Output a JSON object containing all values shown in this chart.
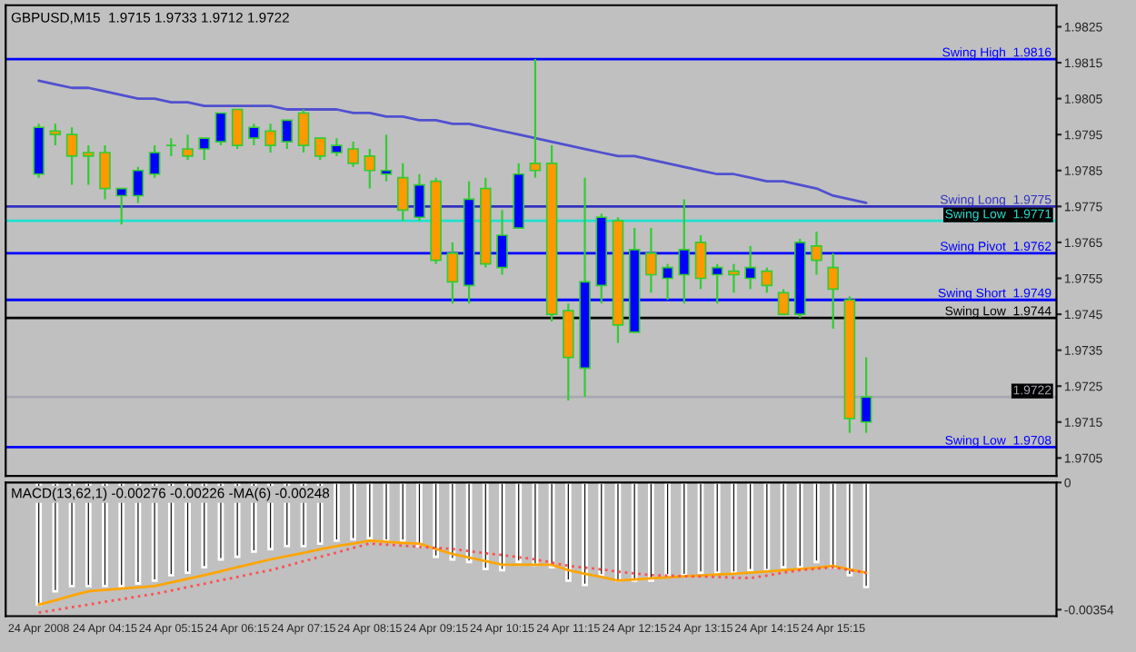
{
  "chart_data": [
    {
      "type": "candlestick",
      "title": "GBPUSD,M15  1.9715 1.9733 1.9712 1.9722",
      "categories": [
        null,
        null,
        null,
        null,
        null,
        null,
        null,
        null,
        null,
        null,
        null,
        null,
        null,
        null,
        null,
        null,
        null,
        null,
        null,
        null,
        null,
        null,
        null,
        null,
        null,
        null,
        null,
        null,
        null,
        null,
        null,
        null,
        null,
        null,
        null,
        null,
        null,
        null,
        null,
        null,
        null,
        null,
        null,
        null,
        null,
        null,
        null,
        null,
        null,
        null,
        null
      ],
      "ohlc": [
        [
          1.9784,
          1.9798,
          1.9783,
          1.9797
        ],
        [
          1.9796,
          1.9798,
          1.9792,
          1.9795
        ],
        [
          1.9795,
          1.9797,
          1.9781,
          1.9789
        ],
        [
          1.979,
          1.9792,
          1.9781,
          1.9789
        ],
        [
          1.979,
          1.9792,
          1.9777,
          1.978
        ],
        [
          1.9778,
          1.978,
          1.977,
          1.978
        ],
        [
          1.9778,
          1.9786,
          1.9776,
          1.9785
        ],
        [
          1.9784,
          1.9792,
          1.9783,
          1.979
        ],
        [
          1.9792,
          1.9794,
          1.9789,
          1.9792
        ],
        [
          1.9791,
          1.9795,
          1.9788,
          1.9789
        ],
        [
          1.9791,
          1.9794,
          1.9788,
          1.9794
        ],
        [
          1.9793,
          1.9801,
          1.9792,
          1.9801
        ],
        [
          1.9802,
          1.9802,
          1.9791,
          1.9792
        ],
        [
          1.9794,
          1.9798,
          1.9792,
          1.9797
        ],
        [
          1.9796,
          1.9798,
          1.979,
          1.9792
        ],
        [
          1.9793,
          1.9799,
          1.9791,
          1.9799
        ],
        [
          1.9801,
          1.9802,
          1.979,
          1.9792
        ],
        [
          1.9794,
          1.9794,
          1.9788,
          1.9789
        ],
        [
          1.979,
          1.9794,
          1.9789,
          1.9792
        ],
        [
          1.9791,
          1.9793,
          1.9786,
          1.9787
        ],
        [
          1.9789,
          1.9791,
          1.978,
          1.9785
        ],
        [
          1.9784,
          1.9795,
          1.9782,
          1.9785
        ],
        [
          1.9783,
          1.9787,
          1.9771,
          1.9774
        ],
        [
          1.9772,
          1.9784,
          1.9771,
          1.9781
        ],
        [
          1.9782,
          1.9783,
          1.9759,
          1.976
        ],
        [
          1.9762,
          1.9765,
          1.9748,
          1.9754
        ],
        [
          1.9753,
          1.9782,
          1.9748,
          1.9777
        ],
        [
          1.978,
          1.9783,
          1.9758,
          1.9759
        ],
        [
          1.9758,
          1.9774,
          1.9756,
          1.9767
        ],
        [
          1.9769,
          1.9787,
          1.9769,
          1.9784
        ],
        [
          1.9787,
          1.9816,
          1.9783,
          1.9785
        ],
        [
          1.9787,
          1.9792,
          1.9743,
          1.9745
        ],
        [
          1.9746,
          1.9748,
          1.9721,
          1.9733
        ],
        [
          1.973,
          1.9783,
          1.9722,
          1.9754
        ],
        [
          1.9753,
          1.9773,
          1.9748,
          1.9772
        ],
        [
          1.9771,
          1.9772,
          1.9737,
          1.9742
        ],
        [
          1.974,
          1.9769,
          1.974,
          1.9763
        ],
        [
          1.9762,
          1.9769,
          1.9751,
          1.9756
        ],
        [
          1.9755,
          1.9759,
          1.9749,
          1.9758
        ],
        [
          1.9756,
          1.9777,
          1.9748,
          1.9763
        ],
        [
          1.9765,
          1.9767,
          1.9752,
          1.9755
        ],
        [
          1.9756,
          1.9759,
          1.9748,
          1.9758
        ],
        [
          1.9757,
          1.9759,
          1.9751,
          1.9756
        ],
        [
          1.9755,
          1.9764,
          1.9752,
          1.9758
        ],
        [
          1.9757,
          1.9758,
          1.9751,
          1.9753
        ],
        [
          1.9751,
          1.9752,
          1.9745,
          1.9745
        ],
        [
          1.9745,
          1.9766,
          1.9744,
          1.9765
        ],
        [
          1.9764,
          1.9768,
          1.9756,
          1.976
        ],
        [
          1.9758,
          1.9762,
          1.9741,
          1.9752
        ],
        [
          1.9749,
          1.975,
          1.9712,
          1.9716
        ],
        [
          1.9715,
          1.9733,
          1.9712,
          1.9722
        ]
      ],
      "colors": [
        "#0000ff",
        "#ff9900",
        "#ff9900",
        "#ff9900",
        "#ff9900",
        "#0000ff",
        "#0000ff",
        "#0000ff",
        "#33cc33",
        "#ff9900",
        "#0000ff",
        "#0000ff",
        "#ff9900",
        "#0000ff",
        "#ff9900",
        "#0000ff",
        "#ff9900",
        "#ff9900",
        "#0000ff",
        "#ff9900",
        "#ff9900",
        "#0000ff",
        "#ff9900",
        "#0000ff",
        "#ff9900",
        "#ff9900",
        "#0000ff",
        "#ff9900",
        "#0000ff",
        "#0000ff",
        "#ff9900",
        "#ff9900",
        "#ff9900",
        "#0000ff",
        "#0000ff",
        "#ff9900",
        "#0000ff",
        "#ff9900",
        "#0000ff",
        "#0000ff",
        "#ff9900",
        "#0000ff",
        "#ff9900",
        "#0000ff",
        "#ff9900",
        "#ff9900",
        "#0000ff",
        "#ff9900",
        "#ff9900",
        "#ff9900",
        "#0000ff"
      ],
      "series": [
        {
          "type": "line",
          "color": "#5050d0",
          "values": [
            1.981,
            1.9809,
            1.9808,
            1.9808,
            1.9807,
            1.9806,
            1.9805,
            1.9805,
            1.9804,
            1.9804,
            1.9803,
            1.9803,
            1.9803,
            1.9803,
            1.9803,
            1.9802,
            1.9802,
            1.9802,
            1.9802,
            1.9801,
            1.9801,
            1.98,
            1.98,
            1.9799,
            1.9799,
            1.9798,
            1.9798,
            1.9797,
            1.9796,
            1.9795,
            1.9794,
            1.9793,
            1.9792,
            1.9791,
            1.979,
            1.9789,
            1.9789,
            1.9788,
            1.9787,
            1.9786,
            1.9785,
            1.9784,
            1.9784,
            1.9783,
            1.9782,
            1.9782,
            1.9781,
            1.978,
            1.9778,
            1.9777,
            1.9776
          ]
        }
      ],
      "ref_lines": [
        {
          "axis": "y",
          "value": 1.9816,
          "label": "Swing High  1.9816",
          "color": "#0000ff"
        },
        {
          "axis": "y",
          "value": 1.9775,
          "label": "Swing Long  1.9775",
          "color": "#3030c0"
        },
        {
          "axis": "y",
          "value": 1.9771,
          "label": "Swing Low  1.9771",
          "color": "#20e0d0"
        },
        {
          "axis": "y",
          "value": 1.9762,
          "label": "Swing Pivot  1.9762",
          "color": "#0000ff"
        },
        {
          "axis": "y",
          "value": 1.9749,
          "label": "Swing Short  1.9749",
          "color": "#0000ff"
        },
        {
          "axis": "y",
          "value": 1.9744,
          "label": "Swing Low  1.9744",
          "color": "#000000"
        },
        {
          "axis": "y",
          "value": 1.9722,
          "label": "1.9722",
          "color": "#a8a8b4"
        },
        {
          "axis": "y",
          "value": 1.9708,
          "label": "Swing Low  1.9708",
          "color": "#0000ff"
        }
      ],
      "ylim": [
        1.97,
        1.9831
      ],
      "yticks": [
        1.9825,
        1.9815,
        1.9805,
        1.9795,
        1.9785,
        1.9775,
        1.9765,
        1.9755,
        1.9745,
        1.9735,
        1.9725,
        1.9715,
        1.9705
      ],
      "tick_labels": "y",
      "grid": false
    },
    {
      "type": "bar",
      "title": "MACD(13,62,1) -0.00276 -0.00226 -MA(6) -0.00248",
      "categories": [
        "24 Apr 2008",
        null,
        null,
        null,
        "24 Apr 04:15",
        null,
        null,
        null,
        "24 Apr 05:15",
        null,
        null,
        null,
        "24 Apr 06:15",
        null,
        null,
        null,
        "24 Apr 07:15",
        null,
        null,
        null,
        "24 Apr 08:15",
        null,
        null,
        null,
        "24 Apr 09:15",
        null,
        null,
        null,
        "24 Apr 10:15",
        null,
        null,
        null,
        "24 Apr 11:15",
        null,
        null,
        null,
        "24 Apr 12:15",
        null,
        null,
        null,
        "24 Apr 13:15",
        null,
        null,
        null,
        "24 Apr 14:15",
        null,
        null,
        null,
        "24 Apr 15:15",
        null,
        null
      ],
      "series": [
        {
          "type": "bar",
          "color": "#101010",
          "values": [
            -0.0034,
            -0.00303,
            -0.00288,
            -0.00288,
            -0.00288,
            -0.00288,
            -0.00281,
            -0.00273,
            -0.00258,
            -0.00251,
            -0.00236,
            -0.00214,
            -0.00207,
            -0.00192,
            -0.00185,
            -0.00177,
            -0.00177,
            -0.0017,
            -0.00162,
            -0.00158,
            -0.00155,
            -0.00162,
            -0.00162,
            -0.00177,
            -0.00207,
            -0.00214,
            -0.00221,
            -0.00241,
            -0.00244,
            -0.00221,
            -0.00229,
            -0.00236,
            -0.00273,
            -0.00285,
            -0.00258,
            -0.00273,
            -0.00273,
            -0.00273,
            -0.00258,
            -0.00258,
            -0.00251,
            -0.00251,
            -0.00251,
            -0.00244,
            -0.00244,
            -0.00236,
            -0.00236,
            -0.00221,
            -0.00236,
            -0.00258,
            -0.00291
          ]
        },
        {
          "type": "line",
          "color": "#ffa500",
          "values": [
            -0.0034,
            -0.00328,
            -0.00315,
            -0.00303,
            -0.00299,
            -0.00295,
            -0.00292,
            -0.00288,
            -0.00278,
            -0.00268,
            -0.00258,
            -0.00247,
            -0.00236,
            -0.00225,
            -0.00214,
            -0.00205,
            -0.00196,
            -0.00186,
            -0.00177,
            -0.0017,
            -0.00162,
            -0.00165,
            -0.00168,
            -0.0017,
            -0.00185,
            -0.00199,
            -0.00209,
            -0.00219,
            -0.00229,
            -0.00229,
            -0.00229,
            -0.00229,
            -0.00244,
            -0.00254,
            -0.00263,
            -0.00273,
            -0.0027,
            -0.00267,
            -0.00264,
            -0.00261,
            -0.00259,
            -0.00256,
            -0.00254,
            -0.00251,
            -0.00248,
            -0.00244,
            -0.00241,
            -0.00237,
            -0.00232,
            -0.00242,
            -0.00251
          ]
        },
        {
          "type": "line",
          "color": "#ff5050",
          "line_style": "dotted",
          "values": [
            -0.00362,
            -0.00355,
            -0.00347,
            -0.0034,
            -0.00332,
            -0.00325,
            -0.00317,
            -0.0031,
            -0.00301,
            -0.00291,
            -0.00282,
            -0.00272,
            -0.00263,
            -0.00253,
            -0.00244,
            -0.00232,
            -0.00219,
            -0.00207,
            -0.00195,
            -0.00182,
            -0.0017,
            -0.00173,
            -0.00176,
            -0.00179,
            -0.00182,
            -0.00185,
            -0.00191,
            -0.00197,
            -0.00202,
            -0.00208,
            -0.00214,
            -0.00223,
            -0.00232,
            -0.00237,
            -0.00242,
            -0.00248,
            -0.00253,
            -0.00258,
            -0.00259,
            -0.00261,
            -0.00262,
            -0.00263,
            -0.00265,
            -0.00266,
            -0.00259,
            -0.00251,
            -0.00244,
            -0.0024,
            -0.00236,
            -0.00244,
            -0.00251
          ]
        }
      ],
      "ylim": [
        -0.00372,
        0
      ],
      "yticks": [
        0,
        {
          "value": -0.00354,
          "label": "-0.00354"
        }
      ],
      "grid": false
    }
  ]
}
